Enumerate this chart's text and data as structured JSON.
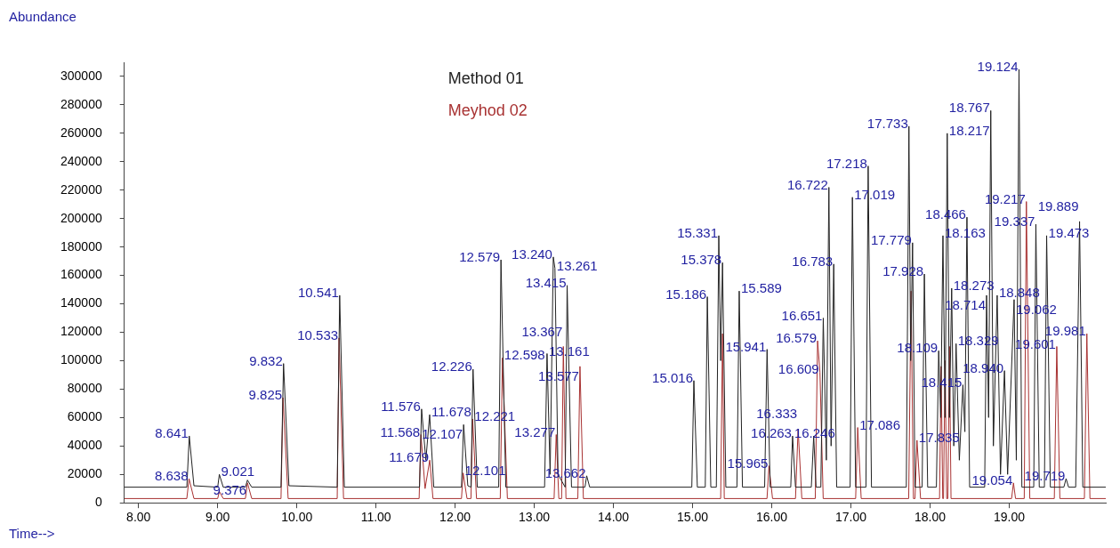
{
  "chart_data": {
    "type": "line",
    "xlabel": "Time-->",
    "ylabel": "Abundance",
    "legend": "top",
    "grid": false,
    "xlim": [
      7.82,
      20.22
    ],
    "ylim": [
      0,
      310000
    ],
    "xticks": [
      {
        "value": 8,
        "label": "8.00"
      },
      {
        "value": 9,
        "label": "9.00"
      },
      {
        "value": 10,
        "label": "10.00"
      },
      {
        "value": 11,
        "label": "11.00"
      },
      {
        "value": 12,
        "label": "12.00"
      },
      {
        "value": 13,
        "label": "13.00"
      },
      {
        "value": 14,
        "label": "14.00"
      },
      {
        "value": 15,
        "label": "15.00"
      },
      {
        "value": 16,
        "label": "16.00"
      },
      {
        "value": 17,
        "label": "17.00"
      },
      {
        "value": 18,
        "label": "18.00"
      },
      {
        "value": 19,
        "label": "19.00"
      }
    ],
    "yticks": [
      0,
      20000,
      40000,
      60000,
      80000,
      100000,
      120000,
      140000,
      160000,
      180000,
      200000,
      220000,
      240000,
      260000,
      280000,
      300000
    ],
    "series": [
      {
        "name": "Method 01",
        "color": "#222222",
        "x": [
          7.82,
          8.61,
          8.641,
          8.7,
          9.0,
          9.021,
          9.07,
          9.35,
          9.376,
          9.43,
          9.8,
          9.832,
          9.9,
          10.51,
          10.541,
          10.6,
          11.55,
          11.576,
          11.63,
          11.678,
          11.73,
          12.08,
          12.107,
          12.16,
          12.2,
          12.226,
          12.28,
          12.55,
          12.579,
          12.64,
          13.13,
          13.161,
          13.2,
          13.24,
          13.261,
          13.3,
          13.39,
          13.415,
          13.47,
          13.64,
          13.662,
          13.7,
          14.99,
          15.016,
          15.06,
          15.16,
          15.186,
          15.23,
          15.3,
          15.331,
          15.355,
          15.378,
          15.42,
          15.56,
          15.589,
          15.63,
          15.91,
          15.941,
          15.98,
          16.24,
          16.263,
          16.3,
          16.5,
          16.53,
          16.56,
          16.62,
          16.651,
          16.69,
          16.722,
          16.75,
          16.783,
          16.82,
          16.99,
          17.019,
          17.06,
          17.19,
          17.218,
          17.26,
          17.7,
          17.733,
          17.755,
          17.779,
          17.81,
          17.9,
          17.928,
          17.97,
          18.08,
          18.109,
          18.135,
          18.163,
          18.19,
          18.217,
          18.245,
          18.273,
          18.3,
          18.329,
          18.37,
          18.415,
          18.44,
          18.466,
          18.5,
          18.69,
          18.714,
          18.74,
          18.767,
          18.8,
          18.848,
          18.89,
          18.94,
          18.98,
          19.062,
          19.09,
          19.124,
          19.16,
          19.31,
          19.337,
          19.38,
          19.445,
          19.473,
          19.52,
          19.69,
          19.719,
          19.75,
          19.84,
          19.889,
          19.93,
          20.22
        ],
        "values": [
          11000,
          11000,
          47000,
          12000,
          11000,
          20000,
          11000,
          11000,
          16000,
          11000,
          11000,
          98000,
          12000,
          11000,
          146000,
          11000,
          11000,
          66000,
          30000,
          62000,
          11000,
          11000,
          55000,
          12000,
          11000,
          94000,
          11000,
          11000,
          171000,
          11000,
          11000,
          105000,
          20000,
          173000,
          165000,
          20000,
          11000,
          153000,
          11000,
          11000,
          19000,
          11000,
          11000,
          86000,
          11000,
          11000,
          145000,
          11000,
          11000,
          188000,
          100000,
          169000,
          11000,
          11000,
          149000,
          11000,
          11000,
          108000,
          11000,
          11000,
          47000,
          11000,
          11000,
          47000,
          11000,
          11000,
          130000,
          30000,
          222000,
          40000,
          168000,
          11000,
          11000,
          215000,
          11000,
          11000,
          237000,
          11000,
          11000,
          265000,
          100000,
          183000,
          11000,
          11000,
          161000,
          11000,
          11000,
          107000,
          60000,
          188000,
          60000,
          260000,
          60000,
          151000,
          40000,
          112000,
          30000,
          83000,
          50000,
          201000,
          11000,
          11000,
          146000,
          60000,
          276000,
          40000,
          146000,
          20000,
          93000,
          20000,
          143000,
          30000,
          305000,
          11000,
          11000,
          196000,
          11000,
          11000,
          188000,
          11000,
          11000,
          17000,
          11000,
          11000,
          198000,
          11000,
          11000
        ]
      },
      {
        "name": "Meyhod 02",
        "color": "#a83232",
        "x": [
          7.82,
          8.61,
          8.638,
          8.7,
          9.0,
          9.021,
          9.07,
          9.35,
          9.376,
          9.43,
          9.8,
          9.825,
          9.89,
          10.51,
          10.533,
          10.59,
          11.545,
          11.568,
          11.62,
          11.679,
          11.72,
          12.08,
          12.101,
          12.15,
          12.2,
          12.221,
          12.27,
          12.57,
          12.598,
          12.66,
          13.25,
          13.277,
          13.31,
          13.345,
          13.367,
          13.4,
          13.55,
          13.577,
          13.62,
          15.355,
          15.378,
          15.4,
          15.94,
          15.965,
          16.01,
          16.3,
          16.333,
          16.38,
          16.55,
          16.579,
          16.609,
          16.65,
          17.06,
          17.086,
          17.13,
          17.73,
          17.76,
          17.79,
          17.81,
          17.835,
          17.88,
          18.12,
          18.14,
          18.16,
          18.17,
          18.19,
          18.21,
          18.225,
          18.245,
          18.265,
          19.03,
          19.054,
          19.08,
          19.19,
          19.217,
          19.26,
          19.57,
          19.601,
          19.64,
          19.95,
          19.981,
          20.02,
          20.22
        ],
        "values": [
          3000,
          3000,
          17000,
          3000,
          3000,
          8000,
          3000,
          3000,
          14000,
          3000,
          3000,
          74000,
          3000,
          3000,
          116000,
          3000,
          3000,
          48000,
          10000,
          30000,
          3000,
          3000,
          21000,
          3000,
          3000,
          59000,
          3000,
          3000,
          102000,
          3000,
          3000,
          48000,
          3000,
          3000,
          110000,
          3000,
          3000,
          96000,
          3000,
          3000,
          119000,
          3000,
          3000,
          26000,
          3000,
          3000,
          52000,
          3000,
          3000,
          114000,
          92000,
          3000,
          3000,
          53000,
          3000,
          3000,
          149000,
          3000,
          3000,
          44000,
          3000,
          3000,
          96000,
          3000,
          3000,
          100000,
          3000,
          3000,
          110000,
          3000,
          3000,
          14000,
          3000,
          3000,
          212000,
          3000,
          3000,
          110000,
          3000,
          3000,
          119000,
          3000,
          3000
        ]
      }
    ],
    "annotations": [
      {
        "text": "8.641",
        "x": 8.641,
        "y": 47000
      },
      {
        "text": "8.638",
        "x": 8.638,
        "y": 17000
      },
      {
        "text": "9.021",
        "x": 9.021,
        "y": 20000
      },
      {
        "text": "9.376",
        "x": 9.376,
        "y": 16000
      },
      {
        "text": "9.832",
        "x": 9.832,
        "y": 98000
      },
      {
        "text": "9.825",
        "x": 9.825,
        "y": 74000
      },
      {
        "text": "10.541",
        "x": 10.541,
        "y": 146000
      },
      {
        "text": "10.533",
        "x": 10.533,
        "y": 116000
      },
      {
        "text": "11.576",
        "x": 11.576,
        "y": 66000
      },
      {
        "text": "11.678",
        "x": 11.678,
        "y": 62000
      },
      {
        "text": "11.568",
        "x": 11.568,
        "y": 48000
      },
      {
        "text": "11.679",
        "x": 11.679,
        "y": 30000
      },
      {
        "text": "12.107",
        "x": 12.107,
        "y": 55000
      },
      {
        "text": "12.101",
        "x": 12.101,
        "y": 21000
      },
      {
        "text": "12.221",
        "x": 12.221,
        "y": 59000
      },
      {
        "text": "12.226",
        "x": 12.226,
        "y": 94000
      },
      {
        "text": "12.579",
        "x": 12.579,
        "y": 171000
      },
      {
        "text": "12.598",
        "x": 12.598,
        "y": 102000
      },
      {
        "text": "13.161",
        "x": 13.161,
        "y": 105000
      },
      {
        "text": "13.240",
        "x": 13.24,
        "y": 173000
      },
      {
        "text": "13.261",
        "x": 13.261,
        "y": 165000
      },
      {
        "text": "13.277",
        "x": 13.277,
        "y": 48000
      },
      {
        "text": "13.367",
        "x": 13.367,
        "y": 110000
      },
      {
        "text": "13.415",
        "x": 13.415,
        "y": 153000
      },
      {
        "text": "13.577",
        "x": 13.577,
        "y": 96000
      },
      {
        "text": "13.662",
        "x": 13.662,
        "y": 19000
      },
      {
        "text": "15.016",
        "x": 15.016,
        "y": 86000
      },
      {
        "text": "15.186",
        "x": 15.186,
        "y": 145000
      },
      {
        "text": "15.331",
        "x": 15.331,
        "y": 188000
      },
      {
        "text": "15.378",
        "x": 15.378,
        "y": 169000
      },
      {
        "text": "15.589",
        "x": 15.589,
        "y": 149000
      },
      {
        "text": "15.941",
        "x": 15.941,
        "y": 108000
      },
      {
        "text": "15.965",
        "x": 15.965,
        "y": 26000
      },
      {
        "text": "16.263",
        "x": 16.263,
        "y": 47000
      },
      {
        "text": "16.246",
        "x": 16.263,
        "y": 47000
      },
      {
        "text": "16.333",
        "x": 16.333,
        "y": 52000
      },
      {
        "text": "16.579",
        "x": 16.579,
        "y": 114000
      },
      {
        "text": "16.609",
        "x": 16.609,
        "y": 92000
      },
      {
        "text": "16.651",
        "x": 16.651,
        "y": 130000
      },
      {
        "text": "16.722",
        "x": 16.722,
        "y": 222000
      },
      {
        "text": "16.783",
        "x": 16.783,
        "y": 168000
      },
      {
        "text": "17.019",
        "x": 17.019,
        "y": 215000
      },
      {
        "text": "17.086",
        "x": 17.086,
        "y": 53000
      },
      {
        "text": "17.218",
        "x": 17.218,
        "y": 237000
      },
      {
        "text": "17.733",
        "x": 17.733,
        "y": 265000
      },
      {
        "text": "17.779",
        "x": 17.779,
        "y": 183000
      },
      {
        "text": "17.835",
        "x": 17.835,
        "y": 44000
      },
      {
        "text": "17.928",
        "x": 17.928,
        "y": 161000
      },
      {
        "text": "18.109",
        "x": 18.109,
        "y": 107000
      },
      {
        "text": "18.163",
        "x": 18.163,
        "y": 188000
      },
      {
        "text": "18.217",
        "x": 18.217,
        "y": 260000
      },
      {
        "text": "18.273",
        "x": 18.273,
        "y": 151000
      },
      {
        "text": "18.329",
        "x": 18.329,
        "y": 112000
      },
      {
        "text": "18.415",
        "x": 18.415,
        "y": 83000
      },
      {
        "text": "18.466",
        "x": 18.466,
        "y": 201000
      },
      {
        "text": "18.714",
        "x": 18.714,
        "y": 146000
      },
      {
        "text": "18.767",
        "x": 18.767,
        "y": 276000
      },
      {
        "text": "18.848",
        "x": 18.848,
        "y": 146000
      },
      {
        "text": "18.940",
        "x": 18.94,
        "y": 93000
      },
      {
        "text": "19.054",
        "x": 19.054,
        "y": 14000
      },
      {
        "text": "19.062",
        "x": 19.062,
        "y": 143000
      },
      {
        "text": "19.124",
        "x": 19.124,
        "y": 305000
      },
      {
        "text": "19.217",
        "x": 19.217,
        "y": 212000
      },
      {
        "text": "19.337",
        "x": 19.337,
        "y": 196000
      },
      {
        "text": "19.473",
        "x": 19.473,
        "y": 188000
      },
      {
        "text": "19.601",
        "x": 19.601,
        "y": 110000
      },
      {
        "text": "19.719",
        "x": 19.719,
        "y": 17000
      },
      {
        "text": "19.889",
        "x": 19.889,
        "y": 198000
      },
      {
        "text": "19.981",
        "x": 19.981,
        "y": 119000
      }
    ]
  }
}
